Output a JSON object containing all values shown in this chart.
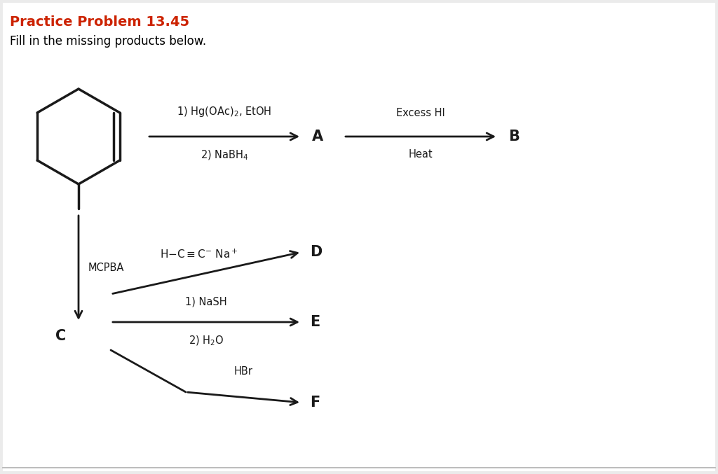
{
  "title": "Practice Problem 13.45",
  "subtitle": "Fill in the missing products below.",
  "title_color": "#cc2200",
  "subtitle_color": "#000000",
  "bg_color": "#ebebeb",
  "content_bg": "#ffffff",
  "arrow_color": "#1a1a1a",
  "text_color": "#1a1a1a",
  "product_A": "A",
  "product_B": "B",
  "product_C": "C",
  "product_D": "D",
  "product_E": "E",
  "product_F": "F",
  "mcpba_label": "MCPBA"
}
